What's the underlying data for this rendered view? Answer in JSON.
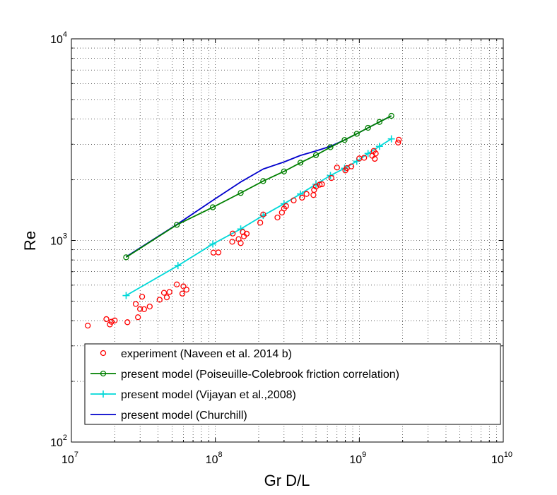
{
  "chart_data": {
    "type": "scatter",
    "title": "",
    "xlabel": "Gr D/L",
    "ylabel": "Re",
    "xscale": "log",
    "yscale": "log",
    "xlim": [
      10000000,
      10000000000
    ],
    "ylim": [
      100,
      10000
    ],
    "grid": "on (dotted, major and minor)",
    "legend_position": "bottom",
    "x_ticks": [
      {
        "base": "10",
        "exp": "7"
      },
      {
        "base": "10",
        "exp": "8"
      },
      {
        "base": "10",
        "exp": "9"
      },
      {
        "base": "10",
        "exp": "10"
      }
    ],
    "y_ticks": [
      {
        "base": "10",
        "exp": "2"
      },
      {
        "base": "10",
        "exp": "3"
      },
      {
        "base": "10",
        "exp": "4"
      }
    ],
    "series": [
      {
        "name": "experiment (Naveen et al. 2014 b)",
        "style": "markers",
        "marker": "circle",
        "color": "#ff0000",
        "points": [
          [
            13000000,
            378
          ],
          [
            17500000,
            407
          ],
          [
            18500000,
            383
          ],
          [
            19000000,
            395
          ],
          [
            20000000,
            401
          ],
          [
            24500000,
            393
          ],
          [
            28000000,
            484
          ],
          [
            29000000,
            416
          ],
          [
            30000000,
            457
          ],
          [
            31000000,
            526
          ],
          [
            32000000,
            456
          ],
          [
            35000000,
            470
          ],
          [
            41000000,
            508
          ],
          [
            44000000,
            550
          ],
          [
            46000000,
            522
          ],
          [
            48000000,
            555
          ],
          [
            54000000,
            605
          ],
          [
            59000000,
            545
          ],
          [
            60000000,
            592
          ],
          [
            63000000,
            570
          ],
          [
            97000000,
            870
          ],
          [
            105000000,
            872
          ],
          [
            131000000,
            985
          ],
          [
            132000000,
            1082
          ],
          [
            145000000,
            1015
          ],
          [
            150000000,
            970
          ],
          [
            155000000,
            1100
          ],
          [
            158000000,
            1048
          ],
          [
            165000000,
            1080
          ],
          [
            205000000,
            1225
          ],
          [
            215000000,
            1345
          ],
          [
            270000000,
            1300
          ],
          [
            290000000,
            1375
          ],
          [
            300000000,
            1440
          ],
          [
            310000000,
            1480
          ],
          [
            350000000,
            1580
          ],
          [
            400000000,
            1630
          ],
          [
            430000000,
            1700
          ],
          [
            480000000,
            1680
          ],
          [
            485000000,
            1780
          ],
          [
            500000000,
            1850
          ],
          [
            530000000,
            1890
          ],
          [
            550000000,
            1900
          ],
          [
            640000000,
            2040
          ],
          [
            700000000,
            2300
          ],
          [
            800000000,
            2225
          ],
          [
            820000000,
            2285
          ],
          [
            880000000,
            2330
          ],
          [
            1000000000,
            2550
          ],
          [
            1080000000,
            2570
          ],
          [
            1230000000,
            2630
          ],
          [
            1260000000,
            2780
          ],
          [
            1280000000,
            2540
          ],
          [
            1300000000,
            2700
          ],
          [
            1860000000,
            3060
          ],
          [
            1880000000,
            3160
          ]
        ]
      },
      {
        "name": "present model (Poiseuille-Colebrook friction correlation)",
        "style": "line+markers",
        "marker": "circle",
        "color": "#008000",
        "points": [
          [
            24000000,
            825
          ],
          [
            54000000,
            1195
          ],
          [
            96000000,
            1460
          ],
          [
            150000000,
            1720
          ],
          [
            215000000,
            1970
          ],
          [
            300000000,
            2200
          ],
          [
            390000000,
            2430
          ],
          [
            500000000,
            2650
          ],
          [
            630000000,
            2900
          ],
          [
            790000000,
            3150
          ],
          [
            960000000,
            3380
          ],
          [
            1150000000,
            3620
          ],
          [
            1380000000,
            3870
          ],
          [
            1670000000,
            4150
          ]
        ]
      },
      {
        "name": "present model (Vijayan et al.,2008)",
        "style": "line+markers",
        "marker": "plus",
        "color": "#00d8d8",
        "points": [
          [
            24000000,
            533
          ],
          [
            55000000,
            750
          ],
          [
            96000000,
            960
          ],
          [
            150000000,
            1140
          ],
          [
            215000000,
            1330
          ],
          [
            300000000,
            1520
          ],
          [
            390000000,
            1700
          ],
          [
            500000000,
            1900
          ],
          [
            630000000,
            2100
          ],
          [
            790000000,
            2280
          ],
          [
            960000000,
            2470
          ],
          [
            1150000000,
            2700
          ],
          [
            1380000000,
            2930
          ],
          [
            1670000000,
            3190
          ]
        ]
      },
      {
        "name": "present model (Churchill)",
        "style": "line",
        "color": "#0000cc",
        "points": [
          [
            24000000,
            830
          ],
          [
            55000000,
            1210
          ],
          [
            96000000,
            1580
          ],
          [
            150000000,
            1950
          ],
          [
            215000000,
            2260
          ],
          [
            300000000,
            2450
          ],
          [
            390000000,
            2640
          ],
          [
            500000000,
            2780
          ],
          [
            630000000,
            2930
          ],
          [
            790000000,
            3150
          ],
          [
            960000000,
            3380
          ],
          [
            1150000000,
            3620
          ],
          [
            1380000000,
            3870
          ],
          [
            1670000000,
            4150
          ]
        ]
      }
    ]
  }
}
